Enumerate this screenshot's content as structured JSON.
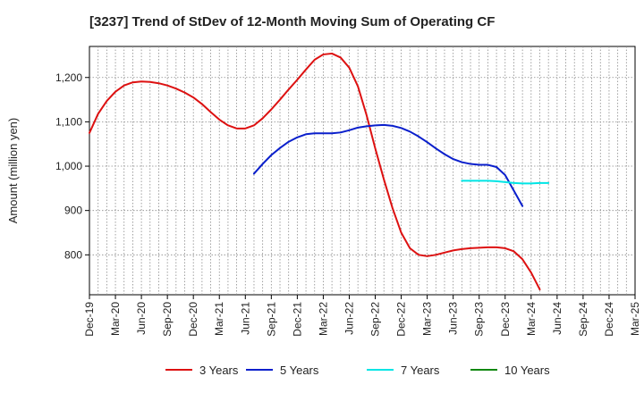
{
  "chart_data": {
    "type": "line",
    "title": "[3237]  Trend of StDev of 12-Month Moving Sum of Operating CF",
    "ylabel": "Amount (million yen)",
    "xlabel": "",
    "ylim": [
      710,
      1270
    ],
    "yticks": [
      800,
      900,
      1000,
      1100,
      1200
    ],
    "ytick_labels": [
      "800",
      "900",
      "1,000",
      "1,100",
      "1,200"
    ],
    "x_categories": [
      "Dec-19",
      "Mar-20",
      "Jun-20",
      "Sep-20",
      "Dec-20",
      "Mar-21",
      "Jun-21",
      "Sep-21",
      "Dec-21",
      "Mar-22",
      "Jun-22",
      "Sep-22",
      "Dec-22",
      "Mar-23",
      "Jun-23",
      "Sep-23",
      "Dec-23",
      "Mar-24",
      "Jun-24",
      "Sep-24",
      "Dec-24",
      "Mar-25"
    ],
    "grid": true,
    "legend_position": "bottom",
    "series": [
      {
        "name": "3 Years",
        "color": "#dd1111",
        "start_index": 0,
        "values": [
          1075,
          1118,
          1147,
          1168,
          1182,
          1189,
          1191,
          1190,
          1187,
          1182,
          1175,
          1166,
          1155,
          1140,
          1122,
          1105,
          1092,
          1085,
          1085,
          1092,
          1108,
          1128,
          1150,
          1173,
          1195,
          1218,
          1240,
          1252,
          1254,
          1245,
          1222,
          1180,
          1115,
          1040,
          970,
          905,
          850,
          815,
          800,
          797,
          800,
          805,
          810,
          813,
          815,
          816,
          817,
          817,
          815,
          808,
          790,
          760,
          722
        ]
      },
      {
        "name": "5 Years",
        "color": "#0a1fcc",
        "start_index": 19,
        "values": [
          983,
          1005,
          1025,
          1041,
          1055,
          1065,
          1072,
          1074,
          1074,
          1074,
          1076,
          1081,
          1087,
          1090,
          1092,
          1093,
          1091,
          1086,
          1078,
          1067,
          1054,
          1040,
          1027,
          1016,
          1009,
          1005,
          1003,
          1003,
          998,
          980,
          945,
          910
        ]
      },
      {
        "name": "7 Years",
        "color": "#00e5e5",
        "start_index": 43,
        "values": [
          967,
          967,
          967,
          967,
          966,
          964,
          962,
          961,
          961,
          962,
          962
        ]
      },
      {
        "name": "10 Years",
        "color": "#118811",
        "start_index": 0,
        "values": []
      }
    ]
  }
}
